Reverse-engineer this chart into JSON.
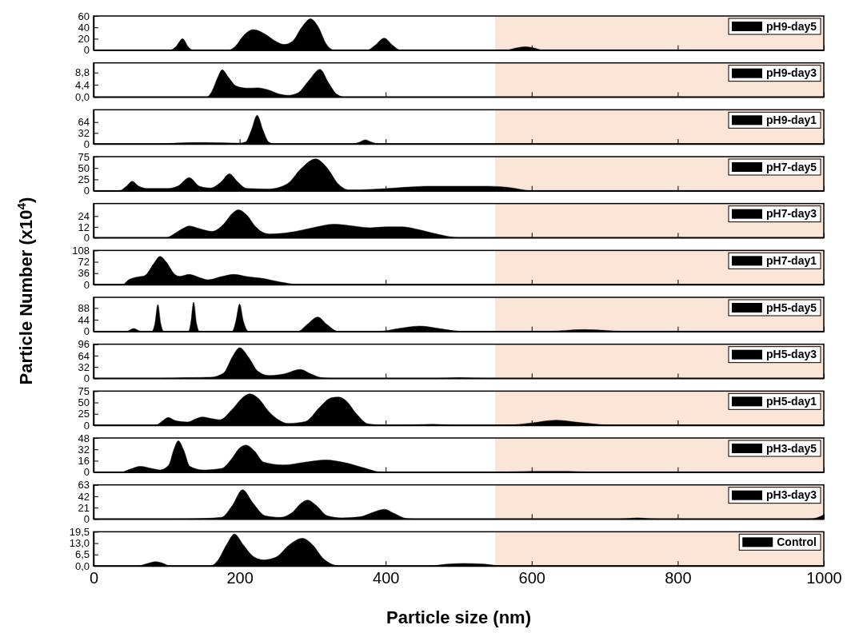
{
  "chart_data": [
    {
      "type": "area",
      "x": [
        0,
        105,
        112,
        122,
        130,
        136,
        185,
        195,
        205,
        219,
        235,
        250,
        261,
        272,
        285,
        297,
        308,
        318,
        330,
        375,
        385,
        398,
        410,
        420,
        565,
        580,
        591,
        602,
        615,
        1000
      ],
      "series": [
        {
          "name": "pH9-day5",
          "color": "#000000",
          "values": [
            0,
            0,
            5,
            20,
            5,
            0,
            0,
            8,
            25,
            36,
            28,
            15,
            10,
            15,
            40,
            55,
            40,
            12,
            0,
            0,
            8,
            21,
            8,
            0,
            0,
            4,
            6,
            4,
            0,
            0
          ]
        }
      ],
      "xlim": [
        0,
        1000
      ],
      "xticks": [
        {
          "value": 0,
          "label": null
        },
        {
          "value": 200,
          "label": null
        },
        {
          "value": 400,
          "label": null
        },
        {
          "value": 600,
          "label": null
        },
        {
          "value": 800,
          "label": null
        },
        {
          "value": 1000,
          "label": null
        }
      ],
      "ylim": [
        0,
        60
      ],
      "yticks": [
        0,
        20,
        40,
        60
      ],
      "tick_labels": "y",
      "legend": "top right",
      "bands": [
        {
          "axis": "x",
          "from": 550,
          "to": 1000,
          "color": "#fbe5d6"
        }
      ]
    },
    {
      "type": "area",
      "x": [
        0,
        155,
        162,
        170,
        176,
        185,
        195,
        210,
        225,
        240,
        255,
        266,
        280,
        295,
        310,
        322,
        333,
        343,
        1000
      ],
      "series": [
        {
          "name": "pH9-day3",
          "color": "#000000",
          "values": [
            0,
            0,
            2,
            7,
            9.8,
            7,
            4,
            3.2,
            3.3,
            2.5,
            1,
            0.6,
            1.5,
            6,
            10,
            5,
            1,
            0,
            0
          ]
        }
      ],
      "xlim": [
        0,
        1000
      ],
      "xticks": [
        {
          "value": 0,
          "label": null
        },
        {
          "value": 200,
          "label": null
        },
        {
          "value": 400,
          "label": null
        },
        {
          "value": 600,
          "label": null
        },
        {
          "value": 800,
          "label": null
        },
        {
          "value": 1000,
          "label": null
        }
      ],
      "ylim": [
        0,
        12.3
      ],
      "yticks": [
        {
          "value": 0,
          "label": "0,0"
        },
        {
          "value": 4.4,
          "label": "4,4"
        },
        {
          "value": 8.8,
          "label": "8,8"
        }
      ],
      "tick_labels": "y",
      "legend": "top right",
      "bands": [
        {
          "axis": "x",
          "from": 550,
          "to": 1000,
          "color": "#fbe5d6"
        }
      ]
    },
    {
      "type": "area",
      "x": [
        0,
        90,
        120,
        150,
        180,
        200,
        208,
        216,
        224,
        232,
        240,
        248,
        355,
        363,
        372,
        382,
        392,
        1000
      ],
      "series": [
        {
          "name": "pH9-day1",
          "color": "#000000",
          "values": [
            0,
            0,
            3,
            4,
            3,
            2,
            5,
            40,
            84,
            40,
            5,
            0,
            0,
            4,
            12,
            4,
            0,
            0
          ]
        }
      ],
      "xlim": [
        0,
        1000
      ],
      "xticks": [
        {
          "value": 0,
          "label": null
        },
        {
          "value": 200,
          "label": null
        },
        {
          "value": 400,
          "label": null
        },
        {
          "value": 600,
          "label": null
        },
        {
          "value": 800,
          "label": null
        },
        {
          "value": 1000,
          "label": null
        }
      ],
      "ylim": [
        0,
        100
      ],
      "yticks": [
        0,
        32,
        64
      ],
      "tick_labels": "y",
      "legend": "top right",
      "bands": [
        {
          "axis": "x",
          "from": 550,
          "to": 1000,
          "color": "#fbe5d6"
        }
      ]
    },
    {
      "type": "area",
      "x": [
        0,
        35,
        45,
        53,
        62,
        75,
        100,
        115,
        131,
        145,
        160,
        175,
        186,
        197,
        210,
        240,
        265,
        285,
        304,
        320,
        335,
        350,
        380,
        420,
        460,
        500,
        540,
        570,
        600,
        1000
      ],
      "series": [
        {
          "name": "pH7-day5",
          "color": "#000000",
          "values": [
            0,
            0,
            10,
            21,
            10,
            5,
            5,
            10,
            29,
            10,
            6,
            20,
            37,
            20,
            5,
            4,
            15,
            50,
            70,
            50,
            15,
            2,
            3,
            7,
            10,
            10,
            10,
            7,
            0,
            0
          ]
        }
      ],
      "xlim": [
        0,
        1000
      ],
      "xticks": [
        {
          "value": 0,
          "label": null
        },
        {
          "value": 200,
          "label": null
        },
        {
          "value": 400,
          "label": null
        },
        {
          "value": 600,
          "label": null
        },
        {
          "value": 800,
          "label": null
        },
        {
          "value": 1000,
          "label": null
        }
      ],
      "ylim": [
        0,
        75
      ],
      "yticks": [
        0,
        25,
        50,
        75
      ],
      "tick_labels": "y",
      "legend": "top right",
      "bands": [
        {
          "axis": "x",
          "from": 550,
          "to": 1000,
          "color": "#fbe5d6"
        }
      ]
    },
    {
      "type": "area",
      "x": [
        0,
        100,
        110,
        122,
        131,
        145,
        162,
        178,
        190,
        198,
        210,
        222,
        241,
        270,
        300,
        329,
        355,
        379,
        400,
        423,
        445,
        470,
        500,
        1000
      ],
      "series": [
        {
          "name": "pH7-day3",
          "color": "#000000",
          "values": [
            0,
            0,
            4,
            10,
            13,
            10,
            7,
            15,
            27,
            31,
            25,
            12,
            4,
            6,
            11,
            15,
            13,
            11,
            12,
            12,
            9,
            4,
            0,
            0
          ]
        }
      ],
      "xlim": [
        0,
        1000
      ],
      "xticks": [
        {
          "value": 0,
          "label": null
        },
        {
          "value": 200,
          "label": null
        },
        {
          "value": 400,
          "label": null
        },
        {
          "value": 600,
          "label": null
        },
        {
          "value": 800,
          "label": null
        },
        {
          "value": 1000,
          "label": null
        }
      ],
      "ylim": [
        0,
        38
      ],
      "yticks": [
        0,
        12,
        24
      ],
      "tick_labels": "y",
      "legend": "top right",
      "bands": [
        {
          "axis": "x",
          "from": 550,
          "to": 1000,
          "color": "#fbe5d6"
        }
      ]
    },
    {
      "type": "area",
      "ylabel": "Particle Number (x10$^{4}$)",
      "x": [
        0,
        40,
        48,
        58,
        70,
        82,
        91,
        100,
        110,
        118,
        131,
        145,
        157,
        175,
        192,
        210,
        233,
        255,
        283,
        1000
      ],
      "series": [
        {
          "name": "pH7-day1",
          "color": "#000000",
          "values": [
            0,
            0,
            15,
            23,
            28,
            65,
            89,
            70,
            35,
            26,
            32,
            22,
            15,
            25,
            32,
            25,
            19,
            8,
            0,
            0
          ]
        }
      ],
      "xlim": [
        0,
        1000
      ],
      "xticks": [
        {
          "value": 0,
          "label": null
        },
        {
          "value": 200,
          "label": null
        },
        {
          "value": 400,
          "label": null
        },
        {
          "value": 600,
          "label": null
        },
        {
          "value": 800,
          "label": null
        },
        {
          "value": 1000,
          "label": null
        }
      ],
      "ylim": [
        0,
        108
      ],
      "yticks": [
        0,
        36,
        72,
        108
      ],
      "tick_labels": "y",
      "legend": "top right",
      "bands": [
        {
          "axis": "x",
          "from": 550,
          "to": 1000,
          "color": "#fbe5d6"
        }
      ]
    },
    {
      "type": "area",
      "x": [
        0,
        45,
        55,
        65,
        80,
        84,
        88,
        92,
        96,
        130,
        133,
        137,
        141,
        145,
        190,
        195,
        200,
        205,
        212,
        280,
        292,
        307,
        320,
        335,
        390,
        420,
        447,
        475,
        505,
        620,
        672,
        730,
        1000
      ],
      "series": [
        {
          "name": "pH5-day5",
          "color": "#000000",
          "values": [
            0,
            0,
            11,
            0,
            0,
            30,
            101,
            30,
            0,
            0,
            30,
            110,
            30,
            0,
            0,
            40,
            103,
            40,
            0,
            0,
            25,
            54,
            25,
            0,
            0,
            12,
            20,
            10,
            0,
            0,
            7,
            0,
            0
          ]
        }
      ],
      "xlim": [
        0,
        1000
      ],
      "xticks": [
        {
          "value": 0,
          "label": null
        },
        {
          "value": 200,
          "label": null
        },
        {
          "value": 400,
          "label": null
        },
        {
          "value": 600,
          "label": null
        },
        {
          "value": 800,
          "label": null
        },
        {
          "value": 1000,
          "label": null
        }
      ],
      "ylim": [
        0,
        128
      ],
      "yticks": [
        0,
        44,
        88
      ],
      "tick_labels": "y",
      "legend": "top right",
      "bands": [
        {
          "axis": "x",
          "from": 550,
          "to": 1000,
          "color": "#fbe5d6"
        }
      ]
    },
    {
      "type": "area",
      "x": [
        0,
        90,
        130,
        160,
        178,
        190,
        200,
        212,
        225,
        240,
        260,
        283,
        298,
        312,
        330,
        470,
        500,
        540,
        1000
      ],
      "series": [
        {
          "name": "pH5-day3",
          "color": "#000000",
          "values": [
            0,
            0,
            2,
            3,
            15,
            60,
            86,
            60,
            20,
            8,
            12,
            25,
            12,
            2,
            0,
            0,
            2,
            0,
            0
          ]
        }
      ],
      "xlim": [
        0,
        1000
      ],
      "xticks": [
        {
          "value": 0,
          "label": null
        },
        {
          "value": 200,
          "label": null
        },
        {
          "value": 400,
          "label": null
        },
        {
          "value": 600,
          "label": null
        },
        {
          "value": 800,
          "label": null
        },
        {
          "value": 1000,
          "label": null
        }
      ],
      "ylim": [
        0,
        96
      ],
      "yticks": [
        0,
        32,
        64,
        96
      ],
      "tick_labels": "y",
      "legend": "top right",
      "bands": [
        {
          "axis": "x",
          "from": 550,
          "to": 1000,
          "color": "#fbe5d6"
        }
      ]
    },
    {
      "type": "area",
      "x": [
        0,
        85,
        95,
        102,
        112,
        129,
        140,
        149,
        160,
        173,
        190,
        205,
        214,
        225,
        240,
        255,
        266,
        290,
        310,
        325,
        335,
        345,
        360,
        376,
        400,
        440,
        465,
        500,
        565,
        600,
        633,
        665,
        710,
        1000
      ],
      "series": [
        {
          "name": "pH5-day1",
          "color": "#000000",
          "values": [
            0,
            0,
            10,
            17,
            10,
            7,
            14,
            18,
            15,
            12,
            35,
            62,
            69,
            60,
            30,
            10,
            4,
            8,
            40,
            60,
            62,
            55,
            25,
            3,
            0,
            1,
            2,
            0,
            0,
            5,
            11,
            6,
            0,
            0
          ]
        }
      ],
      "xlim": [
        0,
        1000
      ],
      "xticks": [
        {
          "value": 0,
          "label": null
        },
        {
          "value": 200,
          "label": null
        },
        {
          "value": 400,
          "label": null
        },
        {
          "value": 600,
          "label": null
        },
        {
          "value": 800,
          "label": null
        },
        {
          "value": 1000,
          "label": null
        }
      ],
      "ylim": [
        0,
        75
      ],
      "yticks": [
        0,
        25,
        50,
        75
      ],
      "tick_labels": "y",
      "legend": "top right",
      "bands": [
        {
          "axis": "x",
          "from": 550,
          "to": 1000,
          "color": "#fbe5d6"
        }
      ]
    },
    {
      "type": "area",
      "x": [
        0,
        38,
        50,
        64,
        80,
        91,
        103,
        110,
        116,
        123,
        132,
        150,
        175,
        190,
        200,
        209,
        220,
        233,
        260,
        290,
        318,
        345,
        370,
        394,
        560,
        600,
        650,
        680,
        1000
      ],
      "series": [
        {
          "name": "pH3-day5",
          "color": "#000000",
          "values": [
            0,
            0,
            4,
            8,
            5,
            3,
            10,
            32,
            44,
            32,
            8,
            3,
            5,
            20,
            34,
            38,
            30,
            14,
            10,
            14,
            17,
            13,
            6,
            0,
            0,
            1,
            1,
            0,
            0
          ]
        }
      ],
      "xlim": [
        0,
        1000
      ],
      "xticks": [
        {
          "value": 0,
          "label": null
        },
        {
          "value": 200,
          "label": null
        },
        {
          "value": 400,
          "label": null
        },
        {
          "value": 600,
          "label": null
        },
        {
          "value": 800,
          "label": null
        },
        {
          "value": 1000,
          "label": null
        }
      ],
      "ylim": [
        0,
        48
      ],
      "yticks": [
        0,
        16,
        32,
        48
      ],
      "tick_labels": "y",
      "legend": "top right",
      "bands": [
        {
          "axis": "x",
          "from": 550,
          "to": 1000,
          "color": "#fbe5d6"
        }
      ]
    },
    {
      "type": "area",
      "x": [
        0,
        100,
        150,
        175,
        190,
        204,
        218,
        235,
        255,
        272,
        285,
        293,
        305,
        320,
        340,
        365,
        382,
        398,
        412,
        428,
        445,
        720,
        745,
        770,
        980,
        990,
        1000
      ],
      "series": [
        {
          "name": "pH3-day3",
          "color": "#000000",
          "values": [
            0,
            0,
            1,
            3,
            25,
            54,
            30,
            6,
            3,
            12,
            30,
            35,
            25,
            6,
            2,
            4,
            12,
            18,
            10,
            1,
            0,
            0,
            2,
            0,
            0,
            2,
            8
          ]
        }
      ],
      "xlim": [
        0,
        1000
      ],
      "xticks": [
        {
          "value": 0,
          "label": null
        },
        {
          "value": 200,
          "label": null
        },
        {
          "value": 400,
          "label": null
        },
        {
          "value": 600,
          "label": null
        },
        {
          "value": 800,
          "label": null
        },
        {
          "value": 1000,
          "label": null
        }
      ],
      "ylim": [
        0,
        63
      ],
      "yticks": [
        0,
        21,
        42,
        63
      ],
      "tick_labels": "y",
      "legend": "top right",
      "bands": [
        {
          "axis": "x",
          "from": 550,
          "to": 1000,
          "color": "#fbe5d6"
        }
      ]
    },
    {
      "type": "area",
      "xlabel": "Particle size (nm)",
      "x": [
        0,
        60,
        75,
        85,
        95,
        105,
        160,
        170,
        182,
        193,
        205,
        220,
        233,
        250,
        268,
        286,
        300,
        315,
        337,
        460,
        485,
        507,
        535,
        560,
        1000
      ],
      "series": [
        {
          "name": "Control",
          "color": "#000000",
          "values": [
            0,
            0,
            1.5,
            2.4,
            1.5,
            0,
            0,
            3,
            12,
            18.2,
            12,
            5,
            3.4,
            5,
            12,
            15.8,
            12,
            4,
            0,
            0,
            1,
            1.4,
            1,
            0,
            0
          ]
        }
      ],
      "xlim": [
        0,
        1000
      ],
      "xticks": [
        0,
        200,
        400,
        600,
        800,
        1000
      ],
      "ylim": [
        0,
        19.5
      ],
      "yticks": [
        {
          "value": 0,
          "label": "0,0"
        },
        {
          "value": 6.5,
          "label": "6,5"
        },
        {
          "value": 13,
          "label": "13,0"
        },
        {
          "value": 19.5,
          "label": "19,5"
        }
      ],
      "legend": "top right",
      "bands": [
        {
          "axis": "x",
          "from": 550,
          "to": 1000,
          "color": "#fbe5d6"
        }
      ]
    }
  ]
}
